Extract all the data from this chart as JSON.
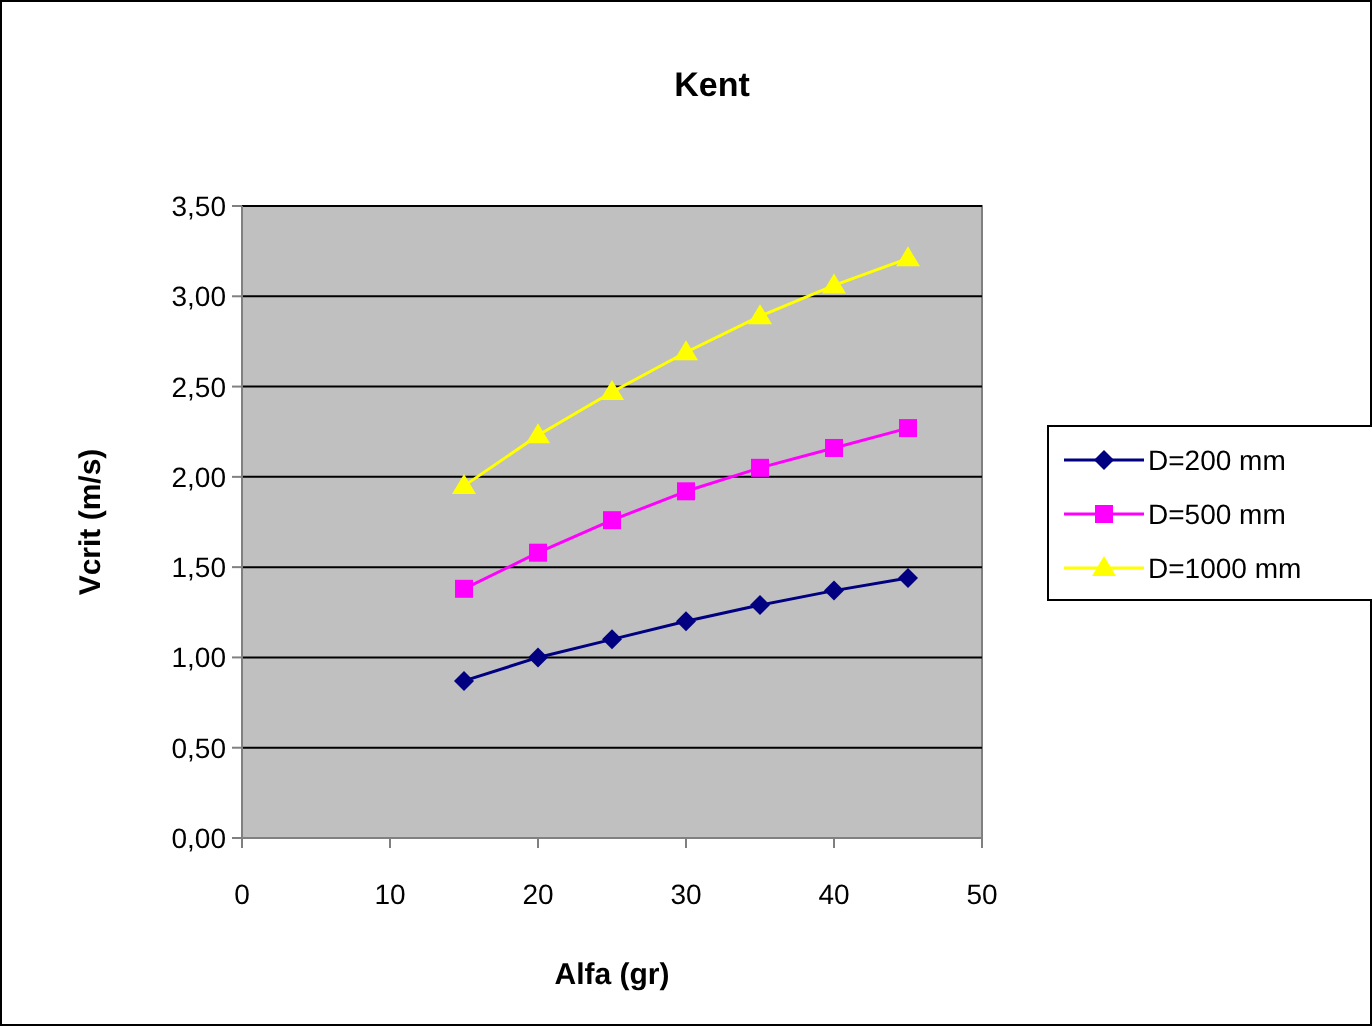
{
  "chart_data": {
    "type": "line",
    "title": "Kent",
    "xlabel": "Alfa (gr)",
    "ylabel": "Vcrit (m/s)",
    "x": [
      15,
      20,
      25,
      30,
      35,
      40,
      45
    ],
    "series": [
      {
        "name": "D=200 mm",
        "color": "#000080",
        "marker": "diamond",
        "values": [
          0.87,
          1.0,
          1.1,
          1.2,
          1.29,
          1.37,
          1.44
        ]
      },
      {
        "name": "D=500 mm",
        "color": "#ff00ff",
        "marker": "square",
        "values": [
          1.38,
          1.58,
          1.76,
          1.92,
          2.05,
          2.16,
          2.27
        ]
      },
      {
        "name": "D=1000 mm",
        "color": "#ffff00",
        "marker": "triangle",
        "values": [
          1.95,
          2.23,
          2.47,
          2.69,
          2.89,
          3.06,
          3.21
        ]
      }
    ],
    "xlim": [
      0,
      50
    ],
    "xticks": [
      0,
      10,
      20,
      30,
      40,
      50
    ],
    "ylim": [
      0,
      3.5
    ],
    "yticks": [
      {
        "value": 0,
        "label": "0,00"
      },
      {
        "value": 0.5,
        "label": "0,50"
      },
      {
        "value": 1,
        "label": "1,00"
      },
      {
        "value": 1.5,
        "label": "1,50"
      },
      {
        "value": 2,
        "label": "2,00"
      },
      {
        "value": 2.5,
        "label": "2,50"
      },
      {
        "value": 3,
        "label": "3,00"
      },
      {
        "value": 3.5,
        "label": "3,50"
      }
    ],
    "grid": "y",
    "legend": "right",
    "line_style": "solid"
  }
}
